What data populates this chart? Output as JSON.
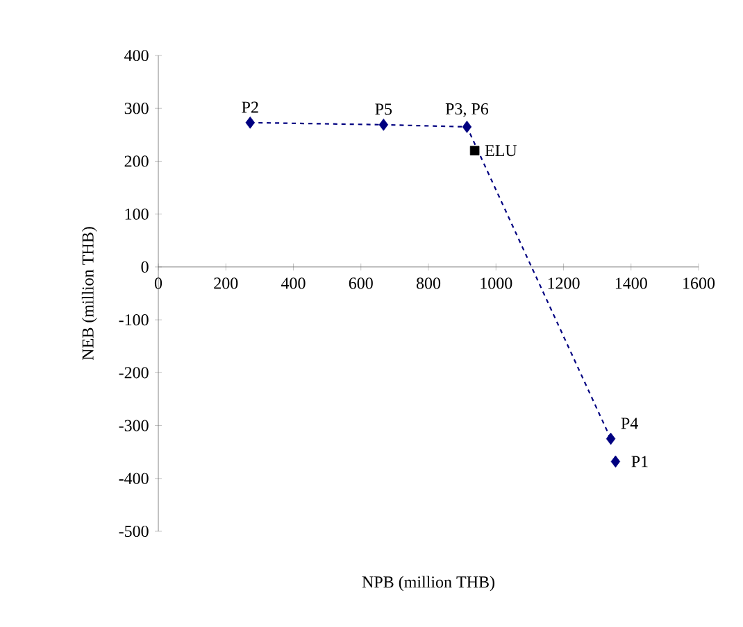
{
  "chart_data": {
    "type": "scatter",
    "xlabel": "NPB (million THB)",
    "ylabel": "NEB (million THB)",
    "xlim": [
      0,
      1600
    ],
    "ylim": [
      -500,
      400
    ],
    "xticks": [
      0,
      200,
      400,
      600,
      800,
      1000,
      1200,
      1400,
      1600
    ],
    "yticks": [
      -500,
      -400,
      -300,
      -200,
      -100,
      0,
      100,
      200,
      300,
      400
    ],
    "grid": false,
    "series": [
      {
        "type": "line",
        "color": "#000080",
        "line_style": "dashed",
        "marker": "none",
        "x": [
          272,
          667,
          914,
          1340
        ],
        "values": [
          273,
          269,
          265,
          -325
        ]
      },
      {
        "color": "#000080",
        "marker": "diamond",
        "x": [
          272,
          667,
          914,
          1340,
          1354
        ],
        "values": [
          273,
          269,
          265,
          -325,
          -368
        ]
      },
      {
        "type": "scatter",
        "color": "#000000",
        "marker": "square",
        "x": [
          937
        ],
        "values": [
          220
        ]
      }
    ],
    "annotations": [
      {
        "text": "P2",
        "x": 272,
        "y": 273
      },
      {
        "text": "P5",
        "x": 667,
        "y": 269
      },
      {
        "text": "P3, P6",
        "x": 914,
        "y": 265
      },
      {
        "text": "ELU",
        "x": 937,
        "y": 220
      },
      {
        "text": "P4",
        "x": 1340,
        "y": -325
      },
      {
        "text": "P1",
        "x": 1354,
        "y": -368
      }
    ]
  }
}
